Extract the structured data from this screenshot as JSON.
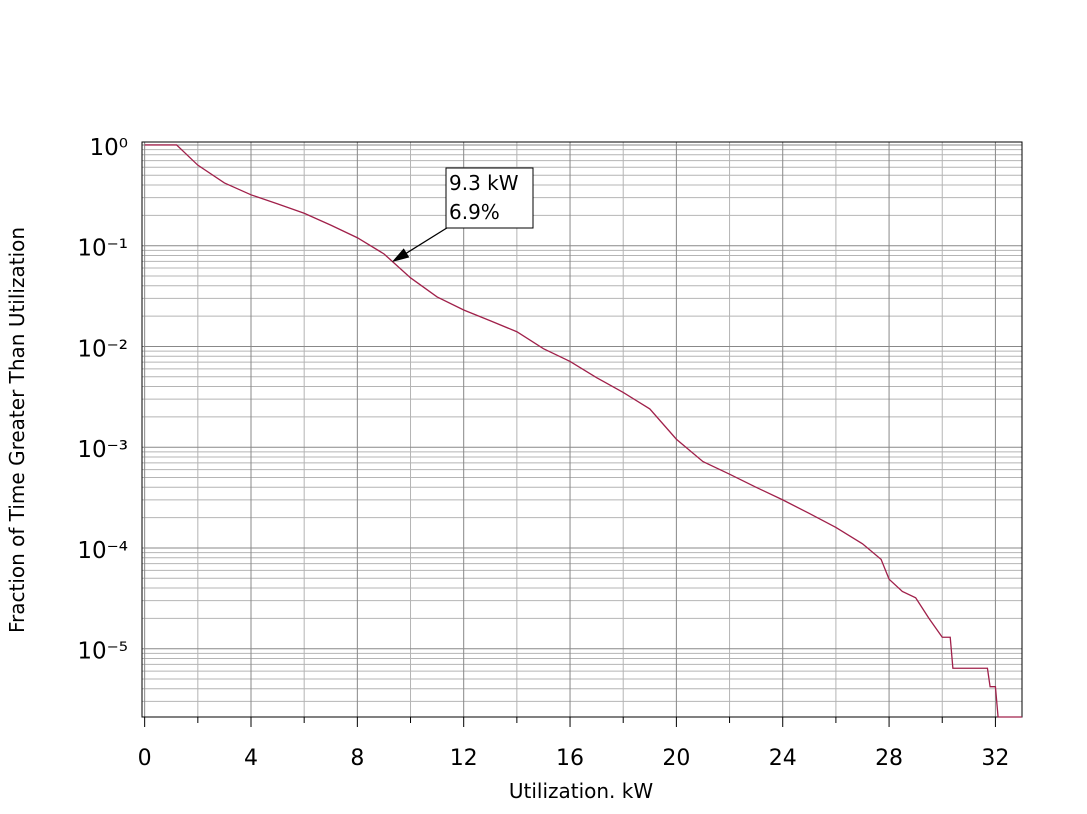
{
  "chart_data": {
    "type": "line",
    "x_label": "Utilization. kW",
    "y_label": "Fraction of Time Greater Than Utilization",
    "log_y": true,
    "grid": true,
    "xlim": [
      -0.1,
      33
    ],
    "ylim": [
      2.1e-06,
      1.07
    ],
    "xticks": [
      0,
      4,
      8,
      12,
      16,
      20,
      24,
      28,
      32
    ],
    "xminor_ticks": [
      2,
      6,
      10,
      14,
      18,
      22,
      26,
      30
    ],
    "yticks": [
      {
        "value": 1,
        "label": "10⁰"
      },
      {
        "value": 0.1,
        "label": "10⁻¹"
      },
      {
        "value": 0.01,
        "label": "10⁻²"
      },
      {
        "value": 0.001,
        "label": "10⁻³"
      },
      {
        "value": 0.0001,
        "label": "10⁻⁴"
      },
      {
        "value": 1e-05,
        "label": "10⁻⁵"
      }
    ],
    "yminor_ticks": [
      0.2,
      0.3,
      0.4,
      0.5,
      0.6,
      0.7,
      0.8,
      0.9,
      0.02,
      0.03,
      0.04,
      0.05,
      0.06,
      0.07,
      0.08,
      0.09,
      0.002,
      0.003,
      0.004,
      0.005,
      0.006,
      0.007,
      0.008,
      0.009,
      0.0002,
      0.0003,
      0.0004,
      0.0005,
      0.0006,
      0.0007,
      0.0008,
      0.0009,
      2e-05,
      3e-05,
      4e-05,
      5e-05,
      6e-05,
      7e-05,
      8e-05,
      9e-05,
      3e-06,
      4e-06,
      5e-06,
      6e-06,
      7e-06,
      8e-06,
      9e-06
    ],
    "series": [
      {
        "color": "#a0204a",
        "x": [
          0,
          1.2,
          2,
          3,
          4,
          5,
          6,
          7,
          8,
          9,
          10,
          11,
          12,
          13,
          14,
          15,
          16,
          17,
          18,
          19,
          20,
          21,
          22,
          23,
          24,
          25,
          26,
          27,
          27.7,
          28,
          28.5,
          29,
          29.5,
          30,
          30.3,
          30.4,
          31.7,
          31.8,
          32.0,
          32.1,
          33
        ],
        "values": [
          1,
          1,
          0.63,
          0.42,
          0.32,
          0.26,
          0.21,
          0.16,
          0.12,
          0.083,
          0.048,
          0.031,
          0.023,
          0.018,
          0.014,
          0.0095,
          0.0071,
          0.0049,
          0.0035,
          0.0024,
          0.0012,
          0.00072,
          0.00054,
          0.0004,
          0.0003,
          0.00022,
          0.00016,
          0.00011,
          7.7e-05,
          4.9e-05,
          3.7e-05,
          3.2e-05,
          2e-05,
          1.3e-05,
          1.3e-05,
          6.4e-06,
          6.4e-06,
          4.2e-06,
          4.2e-06,
          2.1e-06,
          2.1e-06
        ]
      }
    ],
    "annotation": {
      "lines": [
        "9.3 kW",
        "6.9%"
      ],
      "x": 9.3,
      "y": 0.069
    }
  }
}
